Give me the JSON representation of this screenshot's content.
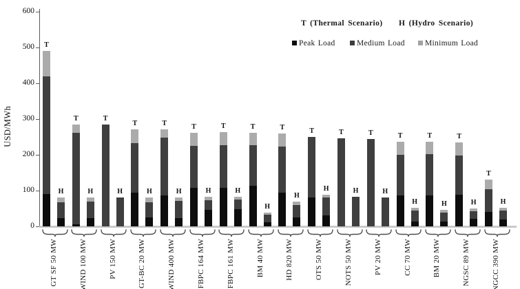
{
  "y_axis": {
    "label": "USD/MWh"
  },
  "scenario_legend": {
    "thermal": "T (Thermal Scenario)",
    "hydro": "H (Hydro Scenario)"
  },
  "series_legend": [
    {
      "label": "Peak Load",
      "color": "#0d0d0d"
    },
    {
      "label": "Medium Load",
      "color": "#3d3d3d"
    },
    {
      "label": "Minimum Load",
      "color": "#a2a2a2"
    }
  ],
  "colors": {
    "peak": "#0d0d0d",
    "medium": "#3f3f3f",
    "minimum": "#ababab",
    "axis": "#5a5a5a",
    "baseline": "#c9c9c9"
  },
  "chart_data": {
    "type": "bar",
    "stacked": true,
    "title": "",
    "xlabel": "",
    "ylabel": "USD/MWh",
    "ylim": [
      0,
      600
    ],
    "yticks": [
      0,
      100,
      200,
      300,
      400,
      500,
      600
    ],
    "grid": false,
    "legend_position": "top-right",
    "scenarios": {
      "T": "Thermal Scenario",
      "H": "Hydro Scenario"
    },
    "series_names": [
      "Peak Load",
      "Medium Load",
      "Minimum Load"
    ],
    "categories": [
      "GT SF 50 MW",
      "WIND 100 MW",
      "PV 150 MW",
      "GT-BC 20 MW",
      "WIND 400 MW",
      "FBPC 164 MW",
      "FBPC 161 MW",
      "BM 40 MW",
      "HD 820 MW",
      "OTS 50 MW",
      "NOTS 50 MW",
      "PV 20 MW",
      "CC 70 MW",
      "BM 20 MW",
      "NGSC 89 MW",
      "NGCC 390 MW"
    ],
    "values": [
      {
        "category": "GT SF 50 MW",
        "T": {
          "peak": 90,
          "medium": 330,
          "minimum": 70
        },
        "H": {
          "peak": 23,
          "medium": 44,
          "minimum": 13
        }
      },
      {
        "category": "WIND 100 MW",
        "T": {
          "peak": 5,
          "medium": 257,
          "minimum": 23
        },
        "H": {
          "peak": 23,
          "medium": 46,
          "minimum": 11
        }
      },
      {
        "category": "PV 150 MW",
        "T": {
          "peak": 0,
          "medium": 285,
          "minimum": 0
        },
        "H": {
          "peak": 0,
          "medium": 80,
          "minimum": 0
        }
      },
      {
        "category": "GT-BC 20 MW",
        "T": {
          "peak": 95,
          "medium": 138,
          "minimum": 38
        },
        "H": {
          "peak": 25,
          "medium": 42,
          "minimum": 13
        }
      },
      {
        "category": "WIND 400 MW",
        "T": {
          "peak": 87,
          "medium": 161,
          "minimum": 23
        },
        "H": {
          "peak": 23,
          "medium": 48,
          "minimum": 9
        }
      },
      {
        "category": "FBPC 164 MW",
        "T": {
          "peak": 108,
          "medium": 117,
          "minimum": 37
        },
        "H": {
          "peak": 46,
          "medium": 27,
          "minimum": 10
        }
      },
      {
        "category": "FBPC 161 MW",
        "T": {
          "peak": 108,
          "medium": 119,
          "minimum": 36
        },
        "H": {
          "peak": 48,
          "medium": 27,
          "minimum": 7
        }
      },
      {
        "category": "BM 40 MW",
        "T": {
          "peak": 113,
          "medium": 114,
          "minimum": 35
        },
        "H": {
          "peak": 12,
          "medium": 21,
          "minimum": 5
        }
      },
      {
        "category": "HD 820 MW",
        "T": {
          "peak": 95,
          "medium": 128,
          "minimum": 37
        },
        "H": {
          "peak": 25,
          "medium": 35,
          "minimum": 10
        }
      },
      {
        "category": "OTS 50 MW",
        "T": {
          "peak": 80,
          "medium": 170,
          "minimum": 0
        },
        "H": {
          "peak": 31,
          "medium": 49,
          "minimum": 8
        }
      },
      {
        "category": "NOTS 50 MW",
        "T": {
          "peak": 0,
          "medium": 246,
          "minimum": 0
        },
        "H": {
          "peak": 0,
          "medium": 83,
          "minimum": 0
        }
      },
      {
        "category": "PV 20 MW",
        "T": {
          "peak": 0,
          "medium": 244,
          "minimum": 0
        },
        "H": {
          "peak": 0,
          "medium": 80,
          "minimum": 0
        }
      },
      {
        "category": "CC 70 MW",
        "T": {
          "peak": 87,
          "medium": 113,
          "minimum": 37
        },
        "H": {
          "peak": 13,
          "medium": 32,
          "minimum": 7
        }
      },
      {
        "category": "BM 20 MW",
        "T": {
          "peak": 87,
          "medium": 115,
          "minimum": 35
        },
        "H": {
          "peak": 13,
          "medium": 25,
          "minimum": 8
        }
      },
      {
        "category": "NGSC 89 MW",
        "T": {
          "peak": 88,
          "medium": 110,
          "minimum": 37
        },
        "H": {
          "peak": 21,
          "medium": 21,
          "minimum": 8
        }
      },
      {
        "category": "NGCC 390 MW",
        "T": {
          "peak": 40,
          "medium": 64,
          "minimum": 27
        },
        "H": {
          "peak": 19,
          "medium": 25,
          "minimum": 8
        }
      }
    ]
  }
}
